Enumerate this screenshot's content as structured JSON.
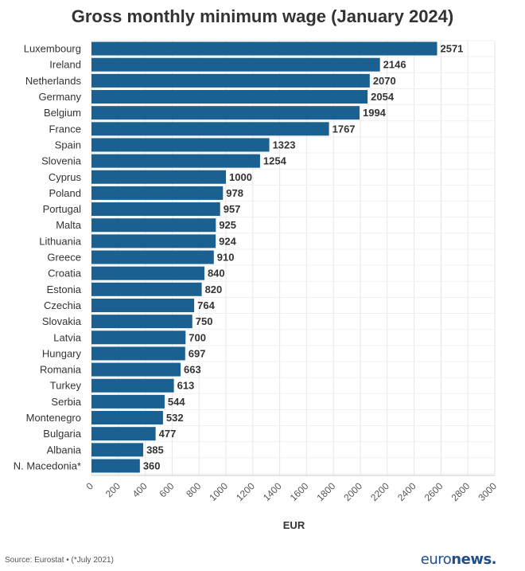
{
  "chart_data": {
    "type": "bar",
    "orientation": "horizontal",
    "title": "Gross monthly minimum wage (January 2024)",
    "xlabel": "EUR",
    "xlim": [
      0,
      3000
    ],
    "xticks": [
      0,
      200,
      400,
      600,
      800,
      1000,
      1200,
      1400,
      1600,
      1800,
      2000,
      2200,
      2400,
      2600,
      2800,
      3000
    ],
    "grid": true,
    "bar_color": "#1a6091",
    "categories": [
      "Luxembourg",
      "Ireland",
      "Netherlands",
      "Germany",
      "Belgium",
      "France",
      "Spain",
      "Slovenia",
      "Cyprus",
      "Poland",
      "Portugal",
      "Malta",
      "Lithuania",
      "Greece",
      "Croatia",
      "Estonia",
      "Czechia",
      "Slovakia",
      "Latvia",
      "Hungary",
      "Romania",
      "Turkey",
      "Serbia",
      "Montenegro",
      "Bulgaria",
      "Albania",
      "N. Macedonia*"
    ],
    "values": [
      2571,
      2146,
      2070,
      2054,
      1994,
      1767,
      1323,
      1254,
      1000,
      978,
      957,
      925,
      924,
      910,
      840,
      820,
      764,
      750,
      700,
      697,
      663,
      613,
      544,
      532,
      477,
      385,
      360
    ]
  },
  "footer": {
    "source": "Source: Eurostat • (*July 2021)",
    "logo_regular": "euro",
    "logo_bold": "news."
  }
}
